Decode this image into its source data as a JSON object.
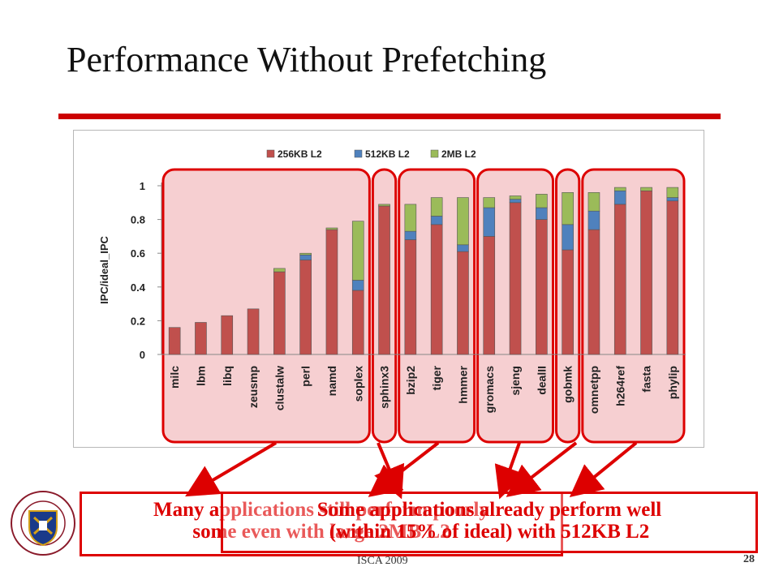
{
  "slide": {
    "title": "Performance Without Prefetching",
    "footer": "ISCA 2009",
    "page_number": "28"
  },
  "colors": {
    "accent": "#cc0000",
    "series_256": "#c0504d",
    "series_512": "#4f81bd",
    "series_2mb": "#9bbb59",
    "group_fill": "#f4c7c9",
    "group_border": "#dd0000"
  },
  "chart_data": {
    "type": "bar",
    "stacked": true,
    "ylabel": "IPC/ideal_IPC",
    "ylim": [
      0,
      1
    ],
    "yticks": [
      "0",
      "0.2",
      "0.4",
      "0.6",
      "0.8",
      "1"
    ],
    "legend_position": "top",
    "categories": [
      "milc",
      "lbm",
      "libq",
      "zeusmp",
      "clustalw",
      "perl",
      "namd",
      "soplex",
      "sphinx3",
      "bzip2",
      "tiger",
      "hmmer",
      "gromacs",
      "sjeng",
      "dealII",
      "gobmk",
      "omnetpp",
      "h264ref",
      "fasta",
      "phylip"
    ],
    "series": [
      {
        "name": "256KB L2",
        "values": [
          0.16,
          0.19,
          0.23,
          0.27,
          0.49,
          0.56,
          0.74,
          0.38,
          0.88,
          0.68,
          0.77,
          0.61,
          0.7,
          0.9,
          0.8,
          0.62,
          0.74,
          0.89,
          0.97,
          0.91
        ]
      },
      {
        "name": "512KB L2",
        "values": [
          0.0,
          0.0,
          0.0,
          0.0,
          0.0,
          0.03,
          0.0,
          0.06,
          0.0,
          0.05,
          0.05,
          0.04,
          0.17,
          0.02,
          0.07,
          0.15,
          0.11,
          0.08,
          0.0,
          0.02
        ]
      },
      {
        "name": "2MB L2",
        "values": [
          0.0,
          0.0,
          0.0,
          0.0,
          0.02,
          0.01,
          0.01,
          0.35,
          0.01,
          0.16,
          0.11,
          0.28,
          0.06,
          0.02,
          0.08,
          0.19,
          0.11,
          0.02,
          0.02,
          0.06
        ]
      }
    ],
    "groups": [
      {
        "start": 0,
        "end": 7
      },
      {
        "start": 8,
        "end": 8
      },
      {
        "start": 9,
        "end": 11
      },
      {
        "start": 12,
        "end": 14
      },
      {
        "start": 15,
        "end": 15
      },
      {
        "start": 16,
        "end": 19
      }
    ]
  },
  "callouts": [
    {
      "line1": "Many applications still perform poorly",
      "line2": "some even with large 2MB L2"
    },
    {
      "line1": "Some applications already perform well",
      "line2": "(within 15% of ideal) with 512KB L2"
    }
  ]
}
